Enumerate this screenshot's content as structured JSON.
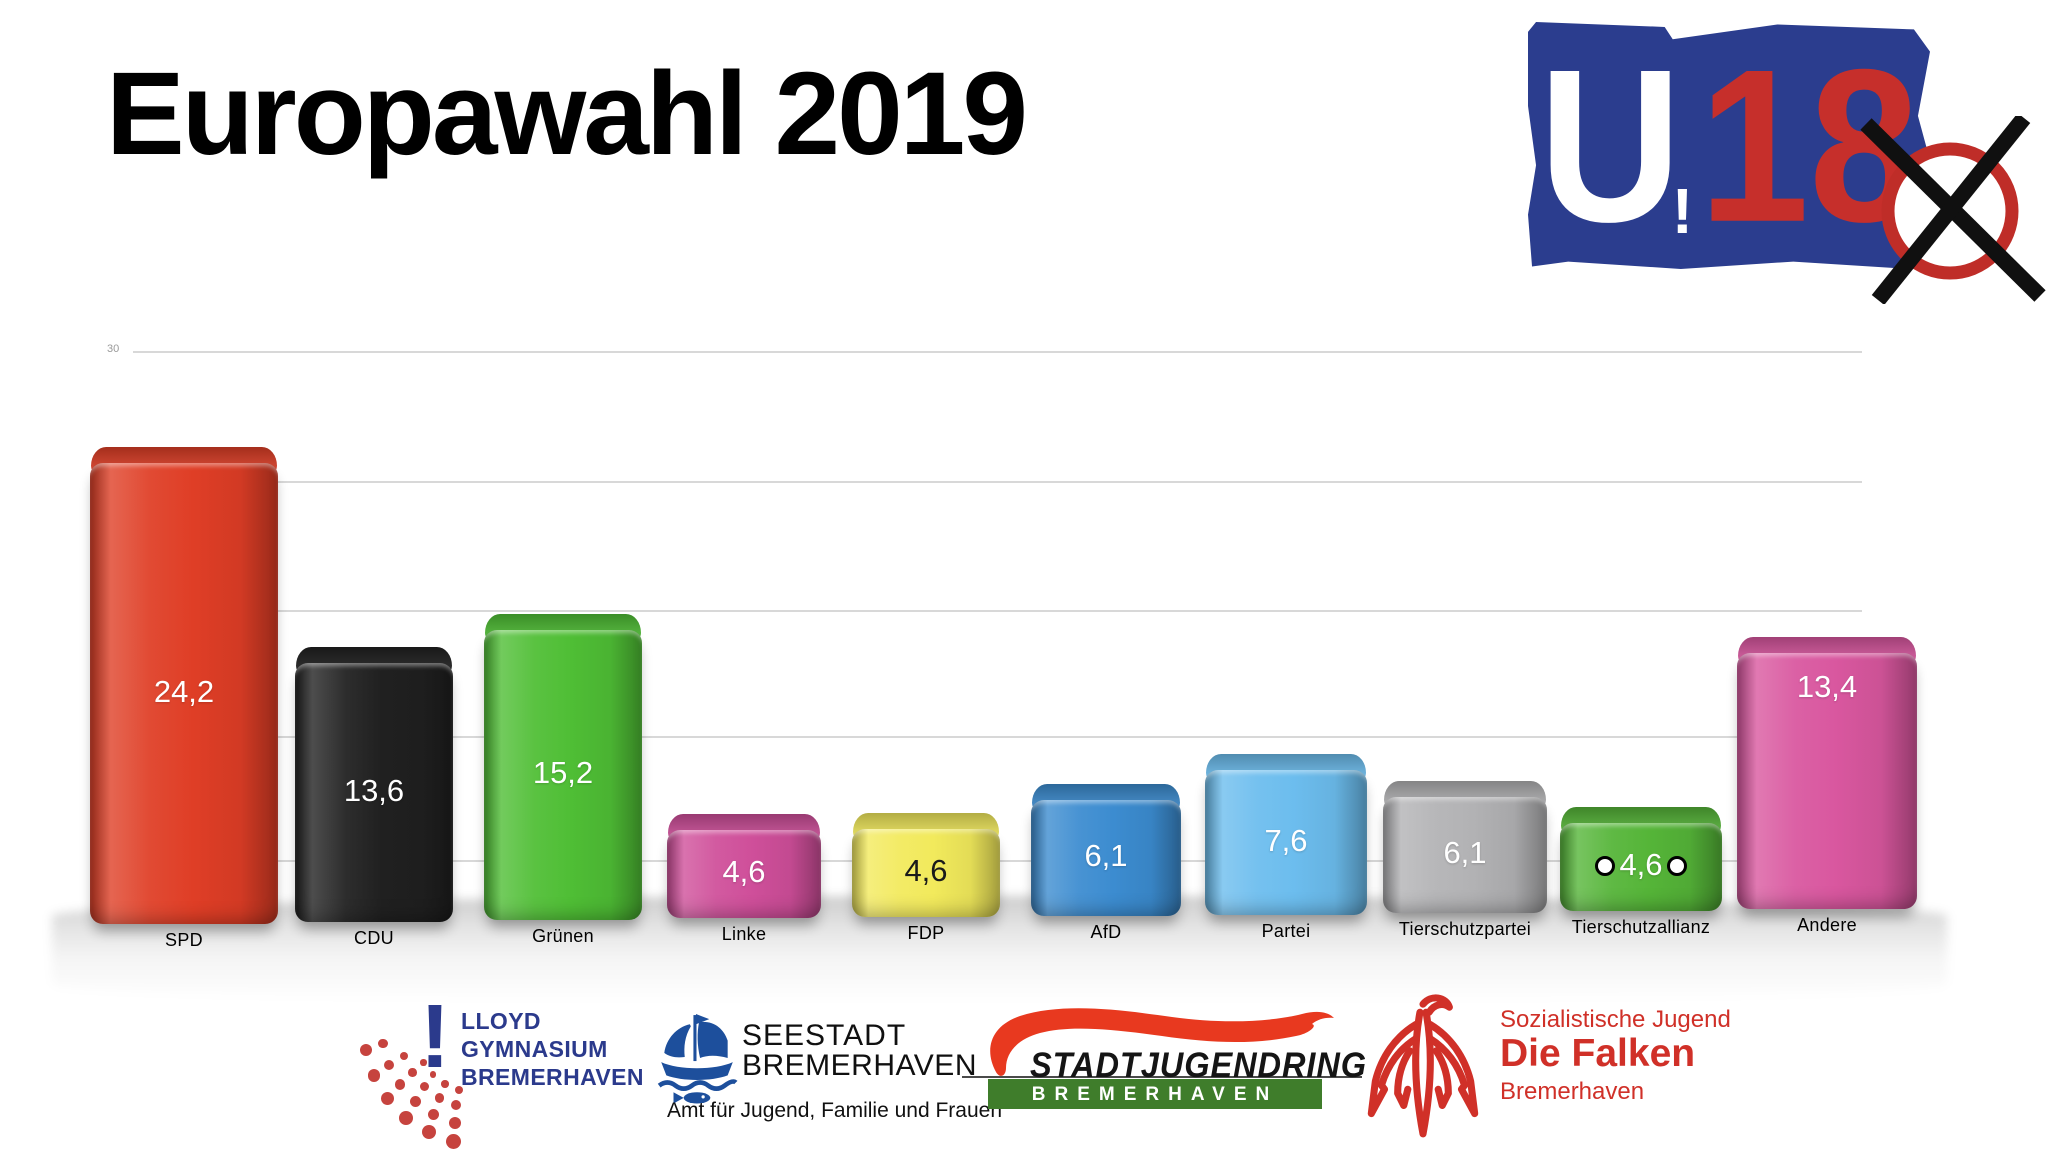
{
  "title": "Europawahl 2019",
  "axis": {
    "top_label": "30"
  },
  "chart_data": {
    "type": "bar",
    "title": "Europawahl 2019",
    "categories": [
      "SPD",
      "CDU",
      "Grünen",
      "Linke",
      "FDP",
      "AfD",
      "Partei",
      "Tierschutzpartei",
      "Tierschutzallianz",
      "Andere"
    ],
    "values": [
      24.2,
      13.6,
      15.2,
      4.6,
      4.6,
      6.1,
      7.6,
      6.1,
      4.6,
      13.4
    ],
    "value_labels": [
      "24,2",
      "13,6",
      "15,2",
      "4,6",
      "4,6",
      "6,1",
      "7,6",
      "6,1",
      "4,6",
      "13,4"
    ],
    "bar_colors": [
      "#df3e26",
      "#202020",
      "#4fbe35",
      "#cf4f9a",
      "#f2ea5c",
      "#3c8cd0",
      "#6cbdee",
      "#b2b2b4",
      "#55b538",
      "#d9579f"
    ],
    "value_label_colors": [
      "#ffffff",
      "#ffffff",
      "#ffffff",
      "#ffffff",
      "#1a1a1a",
      "#ffffff",
      "#ffffff",
      "#ffffff",
      "#ffffff",
      "#ffffff"
    ],
    "value_label_positions": [
      "middle",
      "middle",
      "middle",
      "middle",
      "middle",
      "middle",
      "middle",
      "middle",
      "middle",
      "top"
    ],
    "value_label_dots": [
      false,
      false,
      false,
      false,
      false,
      false,
      false,
      false,
      true,
      false
    ],
    "ylabel": "",
    "xlabel": "",
    "ylim": [
      0,
      30
    ],
    "grid": true,
    "legend": false
  },
  "u18": {
    "u": "U",
    "ex": "!",
    "num": "18",
    "blue": "#2b3d8e",
    "red": "#c62f2b"
  },
  "logos": {
    "lloyd": {
      "lines": [
        "LLOYD",
        "GYMNASIUM",
        "BREMERHAVEN"
      ],
      "color": "#2b3a8c",
      "dots_color": "#c6433e"
    },
    "seestadt": {
      "line1": "SEESTADT",
      "line2": "BREMERHAVEN",
      "subtitle": "Amt für Jugend, Familie und Frauen",
      "ship_color": "#1d4f9c"
    },
    "stadtjugendring": {
      "name": "STADTJUGENDRING",
      "bar_text": "BREMERHAVEN",
      "swoosh_color": "#e8391f",
      "bar_color": "#3f7d2b"
    },
    "falken": {
      "line1": "Sozialistische Jugend",
      "line2": "Die Falken",
      "line3": "Bremerhaven",
      "color": "#d03028"
    }
  }
}
